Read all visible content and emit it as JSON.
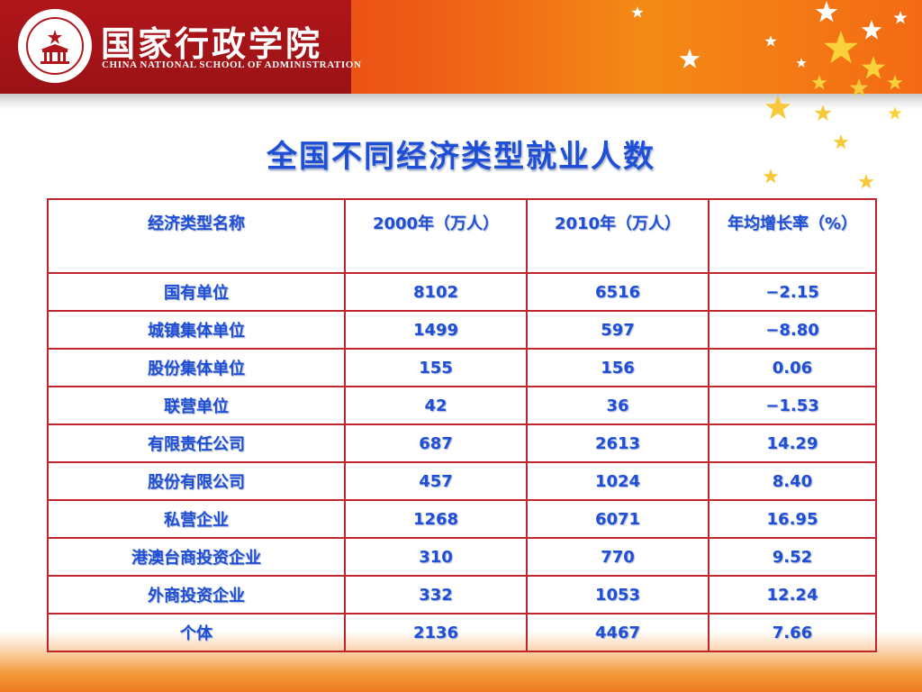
{
  "header": {
    "school_name_cn": "国家行政学院",
    "school_name_en": "CHINA NATIONAL SCHOOL OF ADMINISTRATION"
  },
  "title": "全国不同经济类型就业人数",
  "table": {
    "columns": [
      "经济类型名称",
      "2000年（万人）",
      "2010年（万人）",
      "年均增长率（%）"
    ],
    "rows": [
      [
        "国有单位",
        "8102",
        "6516",
        "−2.15"
      ],
      [
        "城镇集体单位",
        "1499",
        "597",
        "−8.80"
      ],
      [
        "股份集体单位",
        "155",
        "156",
        "0.06"
      ],
      [
        "联营单位",
        "42",
        "36",
        "−1.53"
      ],
      [
        "有限责任公司",
        "687",
        "2613",
        "14.29"
      ],
      [
        "股份有限公司",
        "457",
        "1024",
        "8.40"
      ],
      [
        "私营企业",
        "1268",
        "6071",
        "16.95"
      ],
      [
        "港澳台商投资企业",
        "310",
        "770",
        "9.52"
      ],
      [
        "外商投资企业",
        "332",
        "1053",
        "12.24"
      ],
      [
        "个体",
        "2136",
        "4467",
        "7.66"
      ]
    ]
  },
  "colors": {
    "header_red": "#b0161a",
    "header_orange": "#ee5a16",
    "title_blue": "#1f4fd6",
    "table_border": "#c0242c"
  }
}
